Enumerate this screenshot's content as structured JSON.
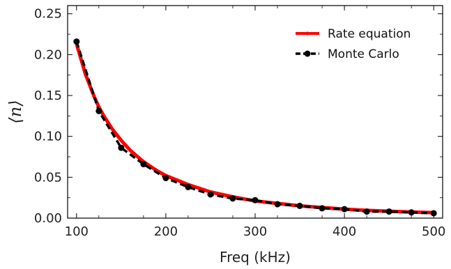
{
  "chart_data": {
    "type": "line",
    "title": "",
    "xlabel": "Freq (kHz)",
    "ylabel": "⟨n⟩",
    "xlim": [
      90,
      510
    ],
    "ylim": [
      0,
      0.26
    ],
    "grid": false,
    "legend_position": "top-right",
    "x_ticks": [
      100,
      200,
      300,
      400,
      500
    ],
    "x_tick_labels": [
      "100",
      "200",
      "300",
      "400",
      "500"
    ],
    "y_ticks": [
      0,
      0.05,
      0.1,
      0.15,
      0.2,
      0.25
    ],
    "y_tick_labels": [
      "0.00",
      "0.05",
      "0.10",
      "0.15",
      "0.20",
      "0.25"
    ],
    "series": [
      {
        "name": "Rate equation",
        "color": "#ff0000",
        "style": "solid",
        "marker": "none",
        "x": [
          100,
          110,
          120,
          125,
          130,
          140,
          150,
          160,
          175,
          190,
          200,
          225,
          250,
          275,
          300,
          325,
          350,
          375,
          400,
          425,
          450,
          475,
          500
        ],
        "y": [
          0.213,
          0.176,
          0.148,
          0.136,
          0.126,
          0.109,
          0.095,
          0.083,
          0.069,
          0.058,
          0.052,
          0.041,
          0.032,
          0.026,
          0.021,
          0.018,
          0.015,
          0.013,
          0.011,
          0.0095,
          0.0084,
          0.0075,
          0.0067
        ]
      },
      {
        "name": "Monte Carlo",
        "color": "#000000",
        "style": "dashed",
        "marker": "circle",
        "x": [
          100,
          125,
          150,
          175,
          200,
          225,
          250,
          275,
          300,
          325,
          350,
          375,
          400,
          425,
          450,
          475,
          500
        ],
        "y": [
          0.216,
          0.131,
          0.086,
          0.066,
          0.049,
          0.038,
          0.029,
          0.024,
          0.022,
          0.017,
          0.015,
          0.012,
          0.011,
          0.008,
          0.008,
          0.007,
          0.006
        ]
      }
    ]
  }
}
